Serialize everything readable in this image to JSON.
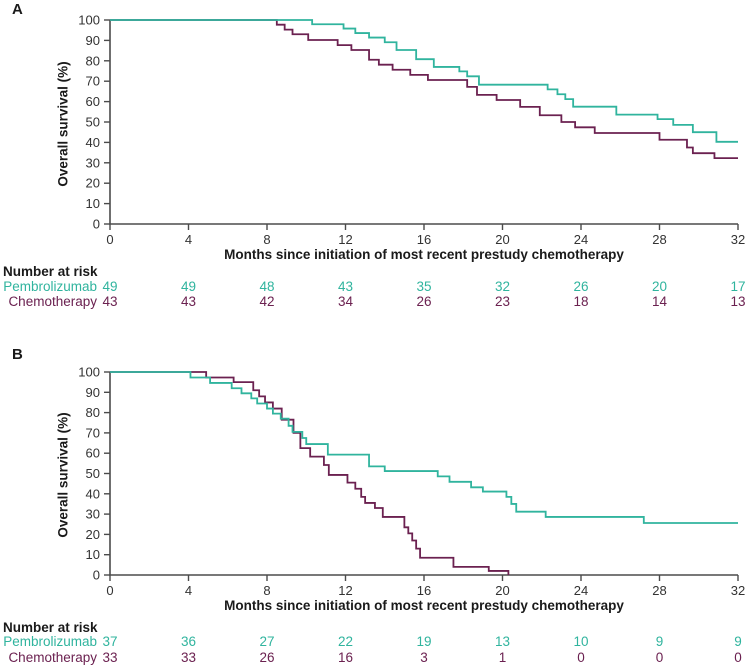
{
  "figure_colors": {
    "pembrolizumab": "#30b49e",
    "chemotherapy": "#6b2150",
    "axis": "#4b4b4b",
    "tick_text": "#333333",
    "label_text": "#1a1a1a"
  },
  "chart_data": [
    {
      "panel": "A",
      "type": "line",
      "subtype": "kaplan-meier-step",
      "xlabel": "Months since initiation of most recent prestudy chemotherapy",
      "ylabel": "Overall survival (%)",
      "xlim": [
        0,
        32
      ],
      "ylim": [
        0,
        100
      ],
      "xticks": [
        0,
        4,
        8,
        12,
        16,
        20,
        24,
        28,
        32
      ],
      "yticks": [
        0,
        10,
        20,
        30,
        40,
        50,
        60,
        70,
        80,
        90,
        100
      ],
      "grid": false,
      "legend": "none (series identified by number-at-risk row colors)",
      "series": [
        {
          "name": "Pembrolizumab",
          "color": "#30b49e",
          "steps": [
            [
              0,
              100
            ],
            [
              10.3,
              97.9
            ],
            [
              11.9,
              95.8
            ],
            [
              12.5,
              93.6
            ],
            [
              13.2,
              91.4
            ],
            [
              14.0,
              89.1
            ],
            [
              14.6,
              85.3
            ],
            [
              15.6,
              80.8
            ],
            [
              16.5,
              77.0
            ],
            [
              17.8,
              74.8
            ],
            [
              18.2,
              72.4
            ],
            [
              18.8,
              68.3
            ],
            [
              22.3,
              66.0
            ],
            [
              22.8,
              63.6
            ],
            [
              23.2,
              61.2
            ],
            [
              23.6,
              57.5
            ],
            [
              25.8,
              53.6
            ],
            [
              27.9,
              51.4
            ],
            [
              28.7,
              48.6
            ],
            [
              29.7,
              45.0
            ],
            [
              30.9,
              40.3
            ],
            [
              32,
              40.3
            ]
          ]
        },
        {
          "name": "Chemotherapy",
          "color": "#6b2150",
          "steps": [
            [
              0,
              100
            ],
            [
              8.5,
              97.7
            ],
            [
              8.9,
              95.3
            ],
            [
              9.3,
              93.0
            ],
            [
              10.1,
              90.2
            ],
            [
              11.6,
              87.7
            ],
            [
              12.3,
              85.3
            ],
            [
              13.2,
              80.5
            ],
            [
              13.7,
              78.1
            ],
            [
              14.4,
              75.6
            ],
            [
              15.3,
              73.1
            ],
            [
              16.2,
              70.6
            ],
            [
              18.2,
              67.2
            ],
            [
              18.7,
              63.3
            ],
            [
              19.7,
              60.8
            ],
            [
              20.9,
              57.4
            ],
            [
              21.9,
              53.3
            ],
            [
              23.0,
              50.0
            ],
            [
              23.7,
              47.4
            ],
            [
              24.7,
              44.6
            ],
            [
              28.0,
              41.3
            ],
            [
              29.4,
              37.5
            ],
            [
              29.7,
              34.7
            ],
            [
              30.8,
              32.3
            ],
            [
              32,
              32.3
            ]
          ]
        }
      ],
      "number_at_risk": {
        "header": "Number at risk",
        "months": [
          0,
          4,
          8,
          12,
          16,
          20,
          24,
          28,
          32
        ],
        "rows": [
          {
            "name": "Pembrolizumab",
            "color": "#30b49e",
            "values": [
              49,
              49,
              48,
              43,
              35,
              32,
              26,
              20,
              17
            ]
          },
          {
            "name": "Chemotherapy",
            "color": "#6b2150",
            "values": [
              43,
              43,
              42,
              34,
              26,
              23,
              18,
              14,
              13
            ]
          }
        ]
      }
    },
    {
      "panel": "B",
      "type": "line",
      "subtype": "kaplan-meier-step",
      "xlabel": "Months since initiation of most recent prestudy chemotherapy",
      "ylabel": "Overall survival (%)",
      "xlim": [
        0,
        32
      ],
      "ylim": [
        0,
        100
      ],
      "xticks": [
        0,
        4,
        8,
        12,
        16,
        20,
        24,
        28,
        32
      ],
      "yticks": [
        0,
        10,
        20,
        30,
        40,
        50,
        60,
        70,
        80,
        90,
        100
      ],
      "grid": false,
      "legend": "none (series identified by number-at-risk row colors)",
      "series": [
        {
          "name": "Pembrolizumab",
          "color": "#30b49e",
          "steps": [
            [
              0,
              100
            ],
            [
              4.1,
              97.3
            ],
            [
              5.1,
              94.6
            ],
            [
              6.2,
              92.0
            ],
            [
              6.7,
              89.5
            ],
            [
              7.2,
              87.0
            ],
            [
              7.5,
              84.5
            ],
            [
              8.0,
              82.0
            ],
            [
              8.3,
              79.5
            ],
            [
              8.7,
              77.0
            ],
            [
              9.1,
              73.5
            ],
            [
              9.3,
              70.5
            ],
            [
              9.8,
              67.5
            ],
            [
              10.0,
              64.5
            ],
            [
              11.1,
              59.3
            ],
            [
              13.2,
              53.5
            ],
            [
              14.0,
              51.2
            ],
            [
              16.7,
              48.6
            ],
            [
              17.3,
              45.9
            ],
            [
              18.4,
              43.2
            ],
            [
              19.0,
              41.1
            ],
            [
              20.2,
              38.5
            ],
            [
              20.45,
              35.0
            ],
            [
              20.7,
              31.2
            ],
            [
              22.2,
              28.6
            ],
            [
              27.2,
              25.6
            ],
            [
              32,
              25.6
            ]
          ]
        },
        {
          "name": "Chemotherapy",
          "color": "#6b2150",
          "steps": [
            [
              0,
              100
            ],
            [
              4.9,
              97.3
            ],
            [
              6.3,
              95.0
            ],
            [
              7.3,
              91.0
            ],
            [
              7.6,
              88.0
            ],
            [
              7.9,
              85.0
            ],
            [
              8.3,
              82.0
            ],
            [
              8.75,
              76.5
            ],
            [
              9.35,
              70.0
            ],
            [
              9.7,
              62.5
            ],
            [
              10.2,
              58.3
            ],
            [
              10.9,
              54.2
            ],
            [
              11.15,
              49.3
            ],
            [
              12.1,
              45.5
            ],
            [
              12.5,
              42.5
            ],
            [
              12.8,
              38.5
            ],
            [
              13.0,
              35.5
            ],
            [
              13.5,
              33.0
            ],
            [
              13.9,
              28.6
            ],
            [
              15.0,
              23.5
            ],
            [
              15.2,
              20.5
            ],
            [
              15.4,
              17.0
            ],
            [
              15.6,
              13.0
            ],
            [
              15.8,
              8.5
            ],
            [
              17.5,
              4.0
            ],
            [
              19.3,
              2.0
            ],
            [
              20.3,
              0
            ]
          ]
        }
      ],
      "number_at_risk": {
        "header": "Number at risk",
        "months": [
          0,
          4,
          8,
          12,
          16,
          20,
          24,
          28,
          32
        ],
        "rows": [
          {
            "name": "Pembrolizumab",
            "color": "#30b49e",
            "values": [
              37,
              36,
              27,
              22,
              19,
              13,
              10,
              9,
              9
            ]
          },
          {
            "name": "Chemotherapy",
            "color": "#6b2150",
            "values": [
              33,
              33,
              26,
              16,
              3,
              1,
              0,
              0,
              0
            ]
          }
        ]
      }
    }
  ]
}
